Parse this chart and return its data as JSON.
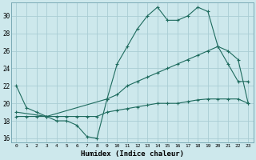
{
  "xlabel": "Humidex (Indice chaleur)",
  "bg_color": "#cde8ec",
  "grid_color": "#aacdd4",
  "line_color": "#1e6b5e",
  "xlim": [
    -0.5,
    23.5
  ],
  "ylim": [
    15.5,
    31.5
  ],
  "xticks": [
    0,
    1,
    2,
    3,
    4,
    5,
    6,
    7,
    8,
    9,
    10,
    11,
    12,
    13,
    14,
    15,
    16,
    17,
    18,
    19,
    20,
    21,
    22,
    23
  ],
  "yticks": [
    16,
    18,
    20,
    22,
    24,
    26,
    28,
    30
  ],
  "line1_x": [
    0,
    1,
    2,
    3,
    4,
    5,
    6,
    7,
    8,
    9,
    10,
    11,
    12,
    13,
    14,
    15,
    16,
    17,
    18,
    19,
    20,
    21,
    22,
    23
  ],
  "line1_y": [
    22,
    19.5,
    19,
    18.5,
    18,
    18,
    17.5,
    16.2,
    16,
    20.5,
    24.5,
    26.5,
    28.5,
    30,
    31,
    29.5,
    29.5,
    30,
    31,
    30.5,
    26.5,
    24.5,
    22.5,
    22.5
  ],
  "line2_x": [
    0,
    3,
    9,
    10,
    11,
    12,
    13,
    14,
    15,
    16,
    17,
    18,
    19,
    20,
    21,
    22,
    23
  ],
  "line2_y": [
    19,
    18.5,
    20.5,
    21,
    22,
    22.5,
    23,
    23.5,
    24,
    24.5,
    25,
    25.5,
    26,
    26.5,
    26,
    25,
    20
  ],
  "line3_x": [
    0,
    1,
    2,
    3,
    4,
    5,
    6,
    7,
    8,
    9,
    10,
    11,
    12,
    13,
    14,
    15,
    16,
    17,
    18,
    19,
    20,
    21,
    22,
    23
  ],
  "line3_y": [
    18.5,
    18.5,
    18.5,
    18.5,
    18.5,
    18.5,
    18.5,
    18.5,
    18.5,
    19,
    19.2,
    19.4,
    19.6,
    19.8,
    20,
    20,
    20,
    20.2,
    20.4,
    20.5,
    20.5,
    20.5,
    20.5,
    20
  ]
}
